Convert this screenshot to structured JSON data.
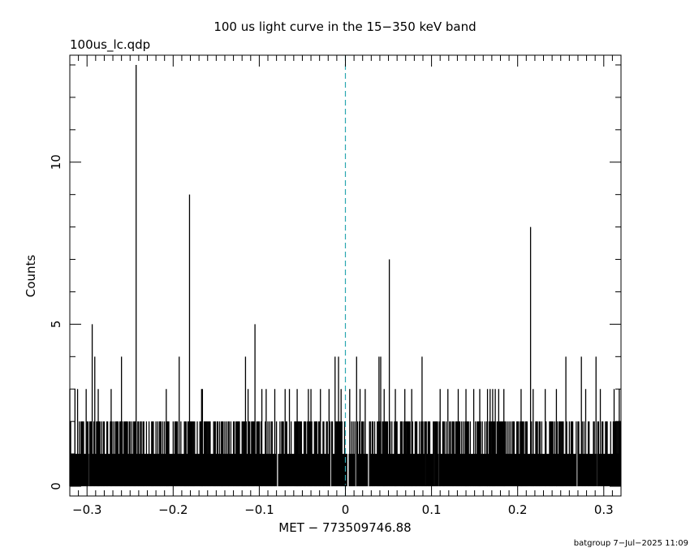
{
  "chart_data": {
    "type": "bar",
    "title": "100 us light curve in the 15−350 keV band",
    "subtitle": "100us_lc.qdp",
    "xlabel": "MET − 773509746.88",
    "ylabel": "Counts",
    "xlim": [
      -0.32,
      0.32
    ],
    "ylim": [
      -0.3,
      13.3
    ],
    "x_ticks": [
      -0.3,
      -0.2,
      -0.1,
      0,
      0.1,
      0.2,
      0.3
    ],
    "x_tick_labels": [
      "−0.3",
      "−0.2",
      "−0.1",
      "0",
      "0.1",
      "0.2",
      "0.3"
    ],
    "y_ticks": [
      0,
      5,
      10
    ],
    "y_tick_labels": [
      "0",
      "5",
      "10"
    ],
    "bin_width": 0.0001,
    "baseline_counts": 1,
    "marker_x": 0,
    "grid": false,
    "peaks": [
      {
        "x": -0.32,
        "y": 3
      },
      {
        "x": -0.314,
        "y": 3
      },
      {
        "x": -0.311,
        "y": 3
      },
      {
        "x": -0.301,
        "y": 3
      },
      {
        "x": -0.294,
        "y": 5
      },
      {
        "x": -0.291,
        "y": 4
      },
      {
        "x": -0.287,
        "y": 3
      },
      {
        "x": -0.272,
        "y": 3
      },
      {
        "x": -0.26,
        "y": 4
      },
      {
        "x": -0.243,
        "y": 13
      },
      {
        "x": -0.208,
        "y": 3
      },
      {
        "x": -0.193,
        "y": 4
      },
      {
        "x": -0.181,
        "y": 9
      },
      {
        "x": -0.167,
        "y": 3
      },
      {
        "x": -0.166,
        "y": 3
      },
      {
        "x": -0.116,
        "y": 4
      },
      {
        "x": -0.113,
        "y": 3
      },
      {
        "x": -0.105,
        "y": 5
      },
      {
        "x": -0.097,
        "y": 3
      },
      {
        "x": -0.092,
        "y": 3
      },
      {
        "x": -0.082,
        "y": 3
      },
      {
        "x": -0.07,
        "y": 3
      },
      {
        "x": -0.065,
        "y": 3
      },
      {
        "x": -0.056,
        "y": 3
      },
      {
        "x": -0.043,
        "y": 3
      },
      {
        "x": -0.04,
        "y": 3
      },
      {
        "x": -0.029,
        "y": 3
      },
      {
        "x": -0.019,
        "y": 3
      },
      {
        "x": -0.012,
        "y": 4
      },
      {
        "x": -0.008,
        "y": 4
      },
      {
        "x": -0.005,
        "y": 3
      },
      {
        "x": 0.005,
        "y": 3
      },
      {
        "x": 0.013,
        "y": 4
      },
      {
        "x": 0.017,
        "y": 3
      },
      {
        "x": 0.023,
        "y": 3
      },
      {
        "x": 0.039,
        "y": 4
      },
      {
        "x": 0.041,
        "y": 4
      },
      {
        "x": 0.045,
        "y": 3
      },
      {
        "x": 0.051,
        "y": 7
      },
      {
        "x": 0.058,
        "y": 3
      },
      {
        "x": 0.069,
        "y": 3
      },
      {
        "x": 0.077,
        "y": 3
      },
      {
        "x": 0.089,
        "y": 4
      },
      {
        "x": 0.11,
        "y": 3
      },
      {
        "x": 0.119,
        "y": 3
      },
      {
        "x": 0.131,
        "y": 3
      },
      {
        "x": 0.14,
        "y": 3
      },
      {
        "x": 0.149,
        "y": 3
      },
      {
        "x": 0.156,
        "y": 3
      },
      {
        "x": 0.165,
        "y": 3
      },
      {
        "x": 0.168,
        "y": 3
      },
      {
        "x": 0.171,
        "y": 3
      },
      {
        "x": 0.174,
        "y": 3
      },
      {
        "x": 0.178,
        "y": 3
      },
      {
        "x": 0.184,
        "y": 3
      },
      {
        "x": 0.204,
        "y": 3
      },
      {
        "x": 0.215,
        "y": 8
      },
      {
        "x": 0.218,
        "y": 3
      },
      {
        "x": 0.232,
        "y": 3
      },
      {
        "x": 0.245,
        "y": 3
      },
      {
        "x": 0.256,
        "y": 4
      },
      {
        "x": 0.274,
        "y": 4
      },
      {
        "x": 0.279,
        "y": 3
      },
      {
        "x": 0.291,
        "y": 4
      },
      {
        "x": 0.296,
        "y": 3
      },
      {
        "x": 0.312,
        "y": 3
      },
      {
        "x": 0.318,
        "y": 3
      }
    ],
    "dips": [
      -0.297,
      -0.207,
      -0.079,
      -0.017,
      0.003,
      0.012,
      0.027,
      0.093,
      0.103,
      0.109,
      0.269,
      0.293
    ]
  },
  "footer": "batgroup  7−Jul−2025 11:09"
}
